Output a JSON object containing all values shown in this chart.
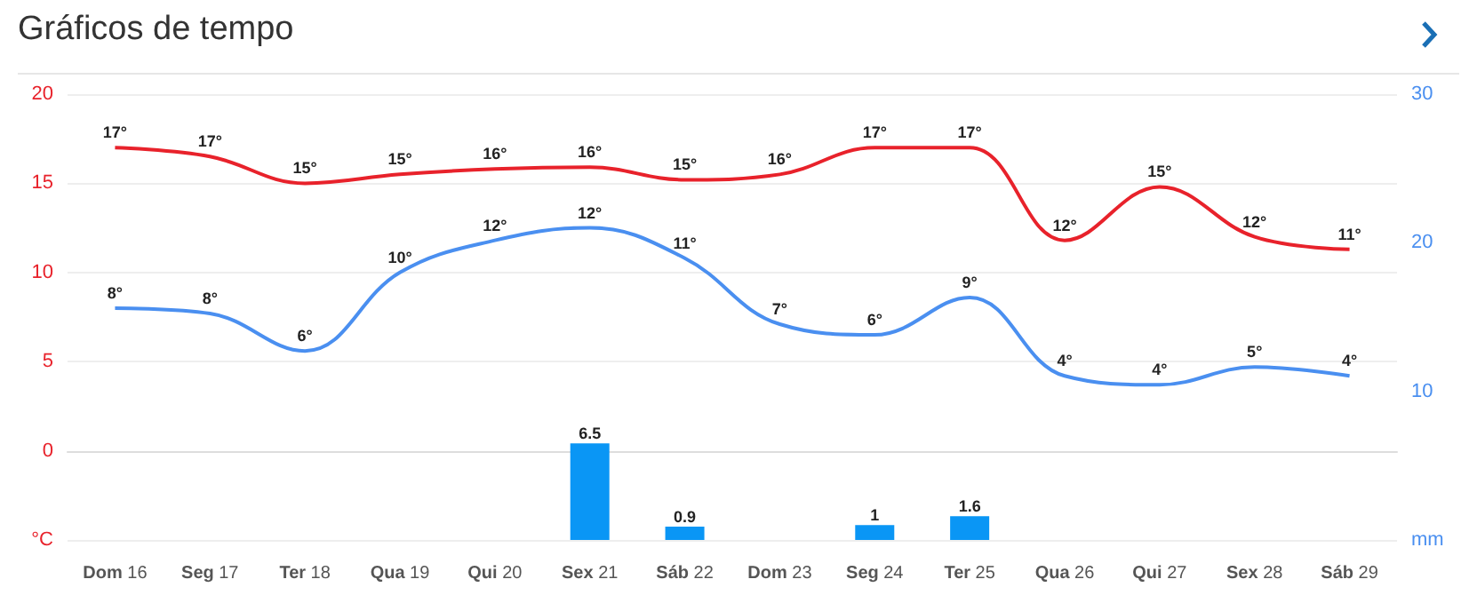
{
  "chart_data": {
    "type": "line",
    "title": "Gráficos de tempo",
    "categories": [
      "Dom 16",
      "Seg 17",
      "Ter 18",
      "Qua 19",
      "Qui 20",
      "Sex 21",
      "Sáb 22",
      "Dom 23",
      "Seg 24",
      "Ter 25",
      "Qua 26",
      "Qui 27",
      "Sex 28",
      "Sáb 29"
    ],
    "series": [
      {
        "type": "line",
        "color": "#e8222b",
        "values": [
          17,
          16.5,
          15,
          15.5,
          15.8,
          15.9,
          15.2,
          15.5,
          17,
          17,
          11.8,
          14.8,
          12,
          11.3
        ],
        "value_labels": [
          "17°",
          "17°",
          "15°",
          "15°",
          "16°",
          "16°",
          "15°",
          "16°",
          "17°",
          "17°",
          "12°",
          "15°",
          "12°",
          "11°"
        ]
      },
      {
        "type": "line",
        "color": "#4a8ff0",
        "values": [
          8,
          7.7,
          5.6,
          10,
          11.8,
          12.5,
          10.8,
          7.1,
          6.5,
          8.6,
          4.2,
          3.7,
          4.7,
          4.2
        ],
        "value_labels": [
          "8°",
          "8°",
          "6°",
          "10°",
          "12°",
          "12°",
          "11°",
          "7°",
          "6°",
          "9°",
          "4°",
          "4°",
          "5°",
          "4°"
        ]
      },
      {
        "type": "bar",
        "axis": "y2",
        "color": "#0a96f5",
        "values": [
          null,
          null,
          null,
          null,
          null,
          6.5,
          0.9,
          null,
          1,
          1.6,
          null,
          null,
          null,
          null
        ],
        "value_labels": [
          null,
          null,
          null,
          null,
          null,
          "6.5",
          "0.9",
          null,
          "1",
          "1.6",
          null,
          null,
          null,
          null
        ]
      }
    ],
    "ylim": [
      -5,
      20
    ],
    "yticks": [
      {
        "value": -5,
        "label": "°C"
      },
      0,
      5,
      10,
      15,
      20
    ],
    "y2lim": [
      0,
      30
    ],
    "y2ticks": [
      {
        "value": 0,
        "label": "mm"
      },
      10,
      20,
      30
    ],
    "grid": "y",
    "marker": "none",
    "line_style": "solid"
  }
}
